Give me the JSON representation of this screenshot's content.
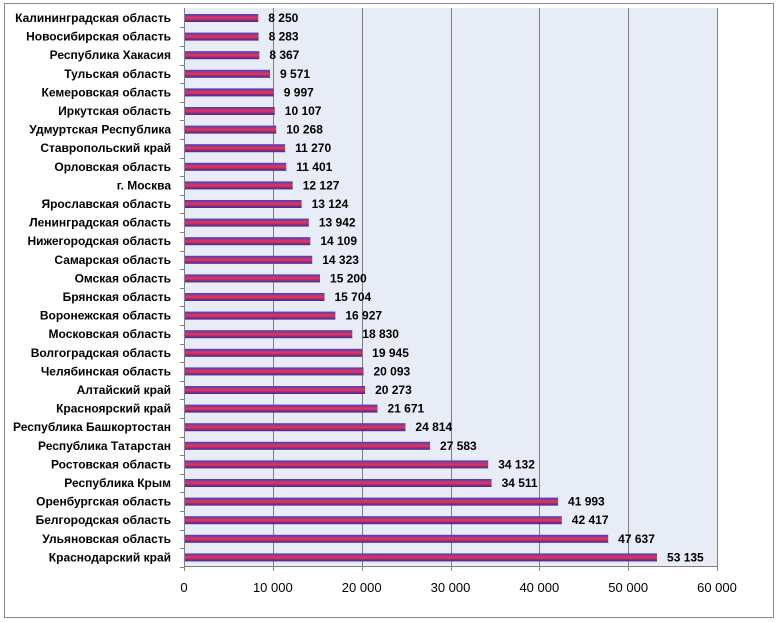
{
  "chart_data": {
    "type": "bar",
    "orientation": "horizontal",
    "categories": [
      "Калининградская область",
      "Новосибирская область",
      "Республика Хакасия",
      "Тульская область",
      "Кемеровская область",
      "Иркутская область",
      "Удмуртская Республика",
      "Ставропольский край",
      "Орловская область",
      "г. Москва",
      "Ярославская область",
      "Ленинградская область",
      "Нижегородская область",
      "Самарская область",
      "Омская область",
      "Брянская область",
      "Воронежская область",
      "Московская область",
      "Волгоградская область",
      "Челябинская область",
      "Алтайский край",
      "Красноярский край",
      "Республика Башкортостан",
      "Республика Татарстан",
      "Ростовская область",
      "Республика Крым",
      "Оренбургская область",
      "Белгородская область",
      "Ульяновская область",
      "Краснодарский край"
    ],
    "values": [
      8250,
      8283,
      8367,
      9571,
      9997,
      10107,
      10268,
      11270,
      11401,
      12127,
      13124,
      13942,
      14109,
      14323,
      15200,
      15704,
      16927,
      18830,
      19945,
      20093,
      20273,
      21671,
      24814,
      27583,
      34132,
      34511,
      41993,
      42417,
      47637,
      53135
    ],
    "value_labels": [
      "8 250",
      "8 283",
      "8 367",
      "9 571",
      "9 997",
      "10 107",
      "10 268",
      "11 270",
      "11 401",
      "12 127",
      "13 124",
      "13 942",
      "14 109",
      "14 323",
      "15 200",
      "15 704",
      "16 927",
      "18 830",
      "19 945",
      "20 093",
      "20 273",
      "21 671",
      "24 814",
      "27 583",
      "34 132",
      "34 511",
      "41 993",
      "42 417",
      "47 637",
      "53 135"
    ],
    "xlim": [
      0,
      60000
    ],
    "xticks": [
      0,
      10000,
      20000,
      30000,
      40000,
      50000,
      60000
    ],
    "xtick_labels": [
      "0",
      "10 000",
      "20 000",
      "30 000",
      "40 000",
      "50 000",
      "60 000"
    ],
    "title": "",
    "xlabel": "",
    "ylabel": "",
    "grid": "vertical",
    "legend": "none",
    "colors": {
      "bar_top": "#4040c0",
      "bar_mid": "#ee3355",
      "bar_bottom": "#3a2a9a",
      "plot_bg": "#e8ecf6",
      "grid": "#7f7f7f",
      "frame": "#888888"
    }
  }
}
